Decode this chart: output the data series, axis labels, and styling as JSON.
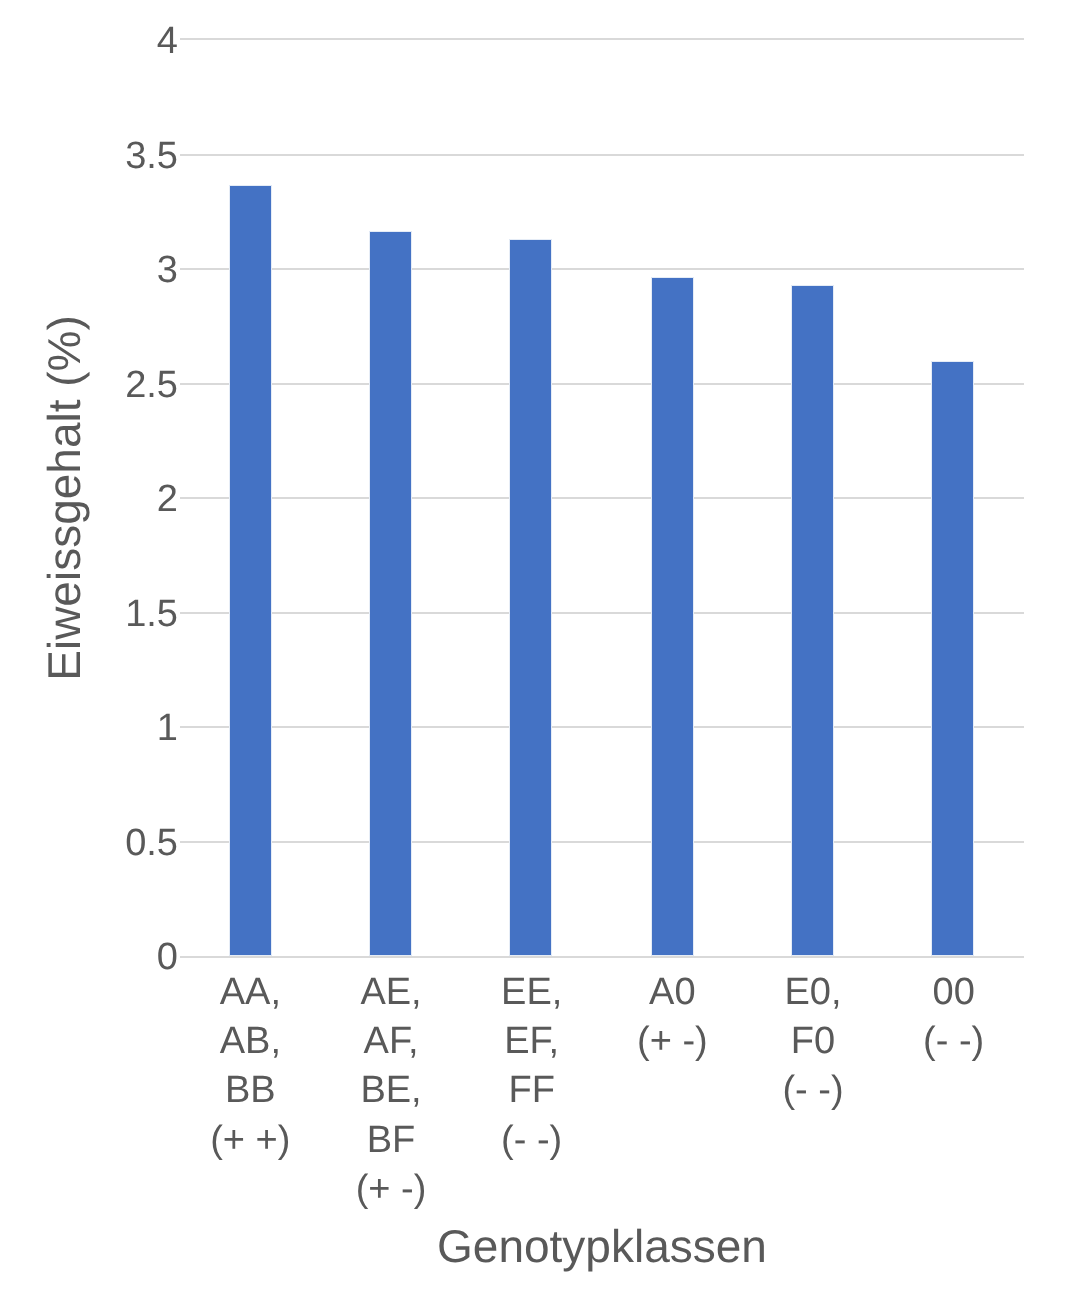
{
  "chart_data": {
    "type": "bar",
    "xlabel": "Genotypklassen",
    "ylabel": "Eiweissgehalt (%)",
    "categories": [
      "AA,\nAB,\nBB\n(+ +)",
      "AE,\nAF,\nBE,\nBF\n(+ -)",
      "EE,\nEF,\nFF\n(- -)",
      "A0\n(+ -)",
      "E0,\nF0\n(- -)",
      "00\n(- -)"
    ],
    "values": [
      3.36,
      3.16,
      3.13,
      2.96,
      2.93,
      2.59
    ],
    "color": "#4472c4",
    "ylim": [
      0,
      4
    ],
    "yticks": [
      0,
      0.5,
      1,
      1.5,
      2,
      2.5,
      3,
      3.5,
      4
    ],
    "grid": "y"
  }
}
